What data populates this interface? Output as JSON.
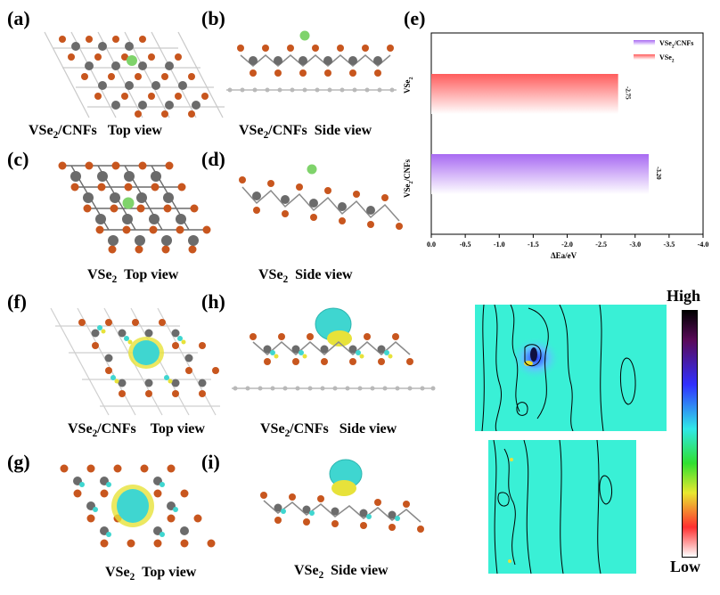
{
  "panels": {
    "a": {
      "label": "(a)",
      "caption_main": "VSe",
      "caption_sub": "2",
      "caption_rest": "/CNFs",
      "caption_view": "Top view"
    },
    "b": {
      "label": "(b)",
      "caption_main": "VSe",
      "caption_sub": "2",
      "caption_rest": "/CNFs",
      "caption_view": "Side view"
    },
    "c": {
      "label": "(c)",
      "caption_main": "VSe",
      "caption_sub": "2",
      "caption_view": "Top view"
    },
    "d": {
      "label": "(d)",
      "caption_main": "VSe",
      "caption_sub": "2",
      "caption_view": "Side view"
    },
    "e": {
      "label": "(e)"
    },
    "f": {
      "label": "(f)",
      "caption_main": "VSe",
      "caption_sub": "2",
      "caption_rest": "/CNFs",
      "caption_view": "Top view"
    },
    "g": {
      "label": "(g)",
      "caption_main": "VSe",
      "caption_sub": "2",
      "caption_view": "Top view"
    },
    "h": {
      "label": "(h)",
      "caption_main": "VSe",
      "caption_sub": "2",
      "caption_rest": "/CNFs",
      "caption_view": "Side view"
    },
    "i": {
      "label": "(i)",
      "caption_main": "VSe",
      "caption_sub": "2",
      "caption_view": "Side view"
    }
  },
  "colorbar": {
    "high": "High",
    "low": "Low"
  },
  "colors": {
    "v_atom": "#6b6b6b",
    "se_atom": "#c8561e",
    "li_atom": "#7fd36b",
    "c_atom": "#b9b9b9",
    "charge_cyan": "#3fd6d0",
    "charge_yellow": "#e7e23a",
    "map_bg": "#39f0d6",
    "bar_vse2": "#ff6f6f",
    "bar_vse2_cnfs": "#b27cf5"
  },
  "chart_data": {
    "type": "bar",
    "orientation": "horizontal",
    "categories": [
      "VSe2",
      "VSe2/CNFs"
    ],
    "values": [
      -2.75,
      -3.2
    ],
    "value_labels": [
      "-2.75",
      "-3.20"
    ],
    "legend": [
      "VSe2/CNFs",
      "VSe2"
    ],
    "legend_position": "top-right",
    "xlabel": "ΔEa/eV",
    "xlim": [
      0.0,
      -4.0
    ],
    "xticks": [
      "0.0",
      "-0.5",
      "-1.0",
      "-1.5",
      "-2.0",
      "-2.5",
      "-3.0",
      "-3.5",
      "-4.0"
    ],
    "ylabels": [
      {
        "main": "VSe",
        "sub": "2",
        "rest": ""
      },
      {
        "main": "VSe",
        "sub": "2",
        "rest": "/CNFs"
      }
    ],
    "legend_items": [
      {
        "main": "VSe",
        "sub": "2",
        "rest": "/CNFs"
      },
      {
        "main": "VSe",
        "sub": "2",
        "rest": ""
      }
    ]
  }
}
